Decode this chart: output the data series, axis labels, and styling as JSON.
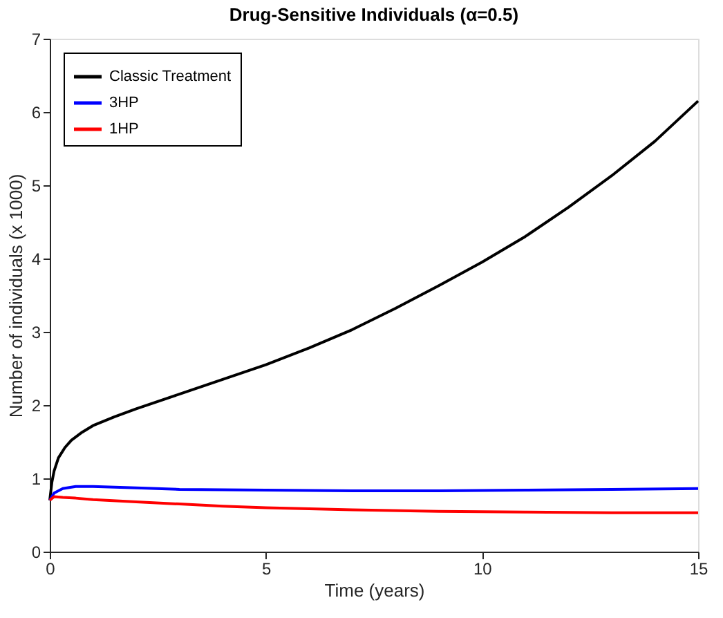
{
  "chart_data": {
    "type": "line",
    "title": "Drug-Sensitive Individuals (α=0.5)",
    "xlabel": "Time (years)",
    "ylabel": "Number of individuals (x 1000)",
    "xlim": [
      0,
      15
    ],
    "ylim": [
      0,
      7
    ],
    "xticks": [
      0,
      5,
      10,
      15
    ],
    "yticks": [
      0,
      1,
      2,
      3,
      4,
      5,
      6,
      7
    ],
    "grid": false,
    "legend": "top left",
    "marker": "none",
    "line_style": "solid",
    "series": [
      {
        "name": "Classic Treatment",
        "color": "#000000",
        "x": [
          0,
          0.05,
          0.1,
          0.2,
          0.35,
          0.5,
          0.75,
          1,
          1.5,
          2,
          3,
          4,
          5,
          6,
          7,
          8,
          9,
          10,
          11,
          12,
          13,
          14,
          15
        ],
        "values": [
          0.7,
          0.95,
          1.1,
          1.28,
          1.42,
          1.52,
          1.63,
          1.72,
          1.84,
          1.95,
          2.15,
          2.35,
          2.55,
          2.78,
          3.03,
          3.32,
          3.63,
          3.95,
          4.3,
          4.7,
          5.13,
          5.6,
          6.15
        ]
      },
      {
        "name": "3HP",
        "color": "#0000ff",
        "x": [
          0,
          0.1,
          0.3,
          0.6,
          1,
          2,
          3,
          5,
          7,
          9,
          11,
          13,
          15
        ],
        "values": [
          0.7,
          0.8,
          0.86,
          0.89,
          0.89,
          0.87,
          0.85,
          0.84,
          0.83,
          0.83,
          0.84,
          0.85,
          0.86
        ]
      },
      {
        "name": "1HP",
        "color": "#ff0000",
        "x": [
          0,
          0.1,
          0.3,
          0.6,
          1,
          2,
          3,
          4,
          5,
          7,
          9,
          11,
          13,
          15
        ],
        "values": [
          0.7,
          0.75,
          0.74,
          0.73,
          0.71,
          0.68,
          0.65,
          0.62,
          0.6,
          0.57,
          0.55,
          0.54,
          0.53,
          0.53
        ]
      }
    ]
  }
}
